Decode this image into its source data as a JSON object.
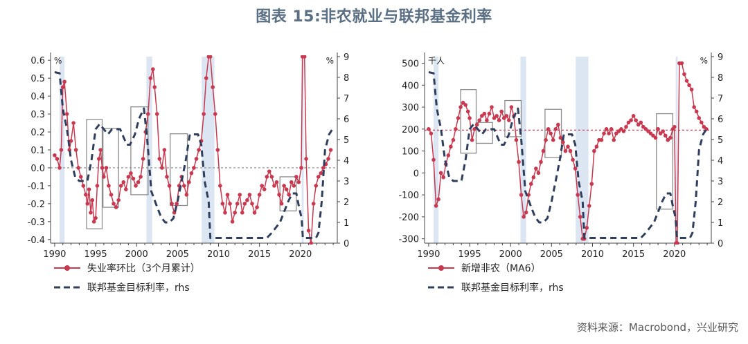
{
  "title": "图表 15:非农就业与联邦基金利率",
  "source": "资料来源：Macrobond，兴业研究",
  "colors": {
    "primary": "#c8384f",
    "secondary": "#2e3e5c",
    "recession": "#dce6f3",
    "box": "#8c8c8c",
    "title": "#5a6f84"
  },
  "chart_data": [
    {
      "type": "line",
      "left_unit": "%",
      "right_unit": "%",
      "ylim": [
        -0.42,
        0.62
      ],
      "y2lim": [
        0,
        9
      ],
      "xlim": [
        1989.5,
        2024.5
      ],
      "yticks": [
        "0.6",
        "0.5",
        "0.4",
        "0.3",
        "0.2",
        "0.1",
        "0.0",
        "-0.1",
        "-0.2",
        "-0.3",
        "-0.4"
      ],
      "y2ticks": [
        "9",
        "8",
        "7",
        "6",
        "5",
        "4",
        "3",
        "2",
        "1",
        "0"
      ],
      "xticks": [
        "1990",
        "1995",
        "2000",
        "2005",
        "2010",
        "2015",
        "2020"
      ],
      "reference_line": 0,
      "recessions": [
        [
          1990.6,
          1991.2
        ],
        [
          2001.2,
          2001.9
        ],
        [
          2007.95,
          2009.5
        ],
        [
          2020.15,
          2020.4
        ]
      ],
      "boxes": [
        [
          1993.9,
          1995.8,
          -0.34,
          0.27
        ],
        [
          1995.9,
          1997.8,
          -0.22,
          0.22
        ],
        [
          1999.3,
          2001.4,
          -0.15,
          0.34
        ],
        [
          2004.1,
          2006.2,
          -0.21,
          0.19
        ],
        [
          2017.5,
          2019.5,
          -0.24,
          -0.05
        ]
      ],
      "series": [
        {
          "name": "失业率环比（3个月累计）",
          "axis": "left",
          "style": "line-marker",
          "x": [
            1990.0,
            1990.3,
            1990.6,
            1990.8,
            1991.0,
            1991.2,
            1991.5,
            1991.8,
            1992.0,
            1992.3,
            1992.6,
            1992.9,
            1993.2,
            1993.5,
            1993.8,
            1994.0,
            1994.2,
            1994.4,
            1994.6,
            1994.8,
            1995.0,
            1995.2,
            1995.4,
            1995.6,
            1995.8,
            1996.0,
            1996.3,
            1996.6,
            1996.9,
            1997.2,
            1997.5,
            1997.8,
            1998.1,
            1998.4,
            1998.7,
            1999.0,
            1999.3,
            1999.6,
            1999.9,
            2000.2,
            2000.5,
            2000.8,
            2001.1,
            2001.4,
            2001.7,
            2002.0,
            2002.2,
            2002.5,
            2002.8,
            2003.1,
            2003.4,
            2003.7,
            2004.0,
            2004.3,
            2004.6,
            2004.9,
            2005.2,
            2005.5,
            2005.8,
            2006.1,
            2006.4,
            2006.7,
            2007.0,
            2007.3,
            2007.6,
            2007.9,
            2008.2,
            2008.5,
            2008.8,
            2009.0,
            2009.3,
            2009.6,
            2009.9,
            2010.2,
            2010.5,
            2010.8,
            2011.1,
            2011.4,
            2011.7,
            2012.0,
            2012.3,
            2012.6,
            2012.9,
            2013.2,
            2013.5,
            2013.8,
            2014.1,
            2014.4,
            2014.7,
            2015.0,
            2015.3,
            2015.6,
            2015.9,
            2016.2,
            2016.5,
            2016.8,
            2017.1,
            2017.4,
            2017.7,
            2018.0,
            2018.3,
            2018.6,
            2018.9,
            2019.2,
            2019.5,
            2019.8,
            2020.1,
            2020.25,
            2020.5,
            2020.7,
            2021.0,
            2021.3,
            2021.6,
            2021.9,
            2022.2,
            2022.5,
            2022.8,
            2023.1,
            2023.4,
            2023.7
          ],
          "y": [
            0.07,
            0.05,
            0.0,
            0.1,
            0.45,
            0.48,
            0.3,
            0.1,
            0.15,
            0.25,
            0.1,
            0.0,
            -0.05,
            -0.1,
            -0.15,
            -0.2,
            -0.12,
            -0.25,
            -0.18,
            -0.3,
            -0.28,
            -0.1,
            0.05,
            0.1,
            0.0,
            -0.05,
            0.0,
            -0.1,
            -0.15,
            -0.2,
            -0.22,
            -0.18,
            -0.1,
            -0.08,
            -0.12,
            -0.05,
            -0.03,
            -0.06,
            -0.1,
            -0.08,
            -0.05,
            0.05,
            0.2,
            0.3,
            0.5,
            0.55,
            0.45,
            0.3,
            0.05,
            0.0,
            0.1,
            -0.05,
            -0.1,
            -0.2,
            -0.25,
            -0.2,
            -0.1,
            -0.05,
            -0.1,
            -0.15,
            -0.08,
            -0.03,
            0.0,
            0.05,
            0.1,
            0.15,
            0.3,
            0.5,
            0.62,
            0.62,
            0.45,
            0.3,
            0.1,
            -0.1,
            -0.2,
            -0.25,
            -0.15,
            -0.2,
            -0.3,
            -0.25,
            -0.2,
            -0.15,
            -0.25,
            -0.2,
            -0.18,
            -0.15,
            -0.2,
            -0.25,
            -0.22,
            -0.15,
            -0.1,
            -0.12,
            -0.05,
            -0.02,
            -0.05,
            -0.1,
            -0.08,
            -0.15,
            -0.2,
            -0.1,
            -0.12,
            -0.15,
            -0.08,
            -0.1,
            -0.05,
            -0.08,
            0.0,
            0.62,
            0.62,
            0.05,
            -0.35,
            -0.42,
            -0.2,
            -0.1,
            -0.05,
            -0.03,
            0.0,
            0.02,
            0.05,
            0.1
          ]
        },
        {
          "name": "联邦基金目标利率，rhs",
          "axis": "right",
          "style": "dashed",
          "x": [
            1990.0,
            1990.6,
            1991.0,
            1991.5,
            1992.0,
            1992.5,
            1993.0,
            1993.5,
            1994.0,
            1994.5,
            1995.0,
            1995.5,
            1996.0,
            1996.5,
            1997.0,
            1998.0,
            1998.8,
            1999.2,
            1999.8,
            2000.3,
            2000.9,
            2001.3,
            2001.8,
            2002.5,
            2003.0,
            2003.5,
            2004.0,
            2004.5,
            2005.0,
            2005.5,
            2006.0,
            2006.5,
            2007.5,
            2007.9,
            2008.3,
            2008.8,
            2009.0,
            2012.0,
            2015.0,
            2015.9,
            2016.5,
            2017.0,
            2017.5,
            2018.0,
            2018.5,
            2019.0,
            2019.5,
            2019.8,
            2020.15,
            2020.3,
            2021.0,
            2021.9,
            2022.2,
            2022.6,
            2023.0,
            2023.5,
            2023.9
          ],
          "y": [
            8.25,
            8.2,
            6.5,
            5.5,
            4.0,
            3.2,
            3.0,
            3.0,
            3.0,
            4.0,
            5.5,
            5.75,
            5.5,
            5.25,
            5.5,
            5.5,
            4.75,
            4.75,
            5.25,
            6.0,
            6.5,
            5.0,
            2.5,
            1.75,
            1.25,
            1.0,
            1.0,
            1.2,
            2.0,
            3.0,
            4.0,
            5.25,
            5.25,
            4.75,
            3.0,
            2.0,
            0.25,
            0.25,
            0.25,
            0.25,
            0.5,
            0.75,
            1.0,
            1.5,
            2.0,
            2.4,
            2.4,
            1.8,
            1.2,
            0.25,
            0.25,
            0.25,
            0.5,
            2.0,
            4.5,
            5.25,
            5.5
          ]
        }
      ]
    },
    {
      "type": "line",
      "left_unit": "千人",
      "right_unit": "%",
      "ylim": [
        -320,
        530
      ],
      "y2lim": [
        0,
        9
      ],
      "xlim": [
        1989.5,
        2024.5
      ],
      "yticks": [
        "500",
        "400",
        "300",
        "200",
        "100",
        "0",
        "-100",
        "-200",
        "-300"
      ],
      "y2ticks": [
        "9",
        "8",
        "7",
        "6",
        "5",
        "4",
        "3",
        "2",
        "1",
        "0"
      ],
      "xticks": [
        "1990",
        "1995",
        "2000",
        "2005",
        "2010",
        "2015",
        "2020"
      ],
      "reference_line": 195,
      "recessions": [
        [
          1990.6,
          1991.2
        ],
        [
          2001.2,
          2001.9
        ],
        [
          2007.95,
          2009.5
        ],
        [
          2020.15,
          2020.4
        ]
      ],
      "boxes": [
        [
          1993.9,
          1995.8,
          90,
          380
        ],
        [
          1995.8,
          1997.8,
          135,
          230
        ],
        [
          1999.3,
          2001.3,
          165,
          330
        ],
        [
          2004.2,
          2006.2,
          70,
          290
        ],
        [
          2017.8,
          2019.8,
          -165,
          270
        ]
      ],
      "series": [
        {
          "name": "新增非农（MA6）",
          "axis": "left",
          "style": "line-marker",
          "x": [
            1990.0,
            1990.3,
            1990.6,
            1990.9,
            1991.2,
            1991.5,
            1991.8,
            1992.1,
            1992.4,
            1992.7,
            1993.0,
            1993.3,
            1993.6,
            1993.9,
            1994.2,
            1994.5,
            1994.8,
            1995.0,
            1995.3,
            1995.6,
            1995.9,
            1996.2,
            1996.5,
            1996.8,
            1997.1,
            1997.4,
            1997.7,
            1998.0,
            1998.3,
            1998.6,
            1998.9,
            1999.2,
            1999.5,
            1999.8,
            2000.1,
            2000.4,
            2000.7,
            2001.0,
            2001.3,
            2001.6,
            2001.9,
            2002.2,
            2002.5,
            2002.8,
            2003.1,
            2003.4,
            2003.7,
            2004.0,
            2004.3,
            2004.6,
            2004.9,
            2005.2,
            2005.5,
            2005.8,
            2006.1,
            2006.4,
            2006.7,
            2007.0,
            2007.3,
            2007.6,
            2007.9,
            2008.2,
            2008.5,
            2008.8,
            2009.0,
            2009.3,
            2009.6,
            2009.9,
            2010.2,
            2010.5,
            2010.8,
            2011.1,
            2011.4,
            2011.7,
            2012.0,
            2012.3,
            2012.6,
            2012.9,
            2013.2,
            2013.5,
            2013.8,
            2014.1,
            2014.4,
            2014.7,
            2015.0,
            2015.3,
            2015.6,
            2015.9,
            2016.2,
            2016.5,
            2016.8,
            2017.1,
            2017.4,
            2017.7,
            2018.0,
            2018.3,
            2018.6,
            2018.9,
            2019.2,
            2019.5,
            2019.8,
            2020.0,
            2020.2,
            2020.35,
            2020.6,
            2020.9,
            2021.2,
            2021.5,
            2021.8,
            2022.1,
            2022.4,
            2022.7,
            2023.0,
            2023.3,
            2023.6,
            2023.9
          ],
          "y": [
            200,
            180,
            60,
            -150,
            -120,
            0,
            -20,
            40,
            80,
            120,
            150,
            200,
            250,
            300,
            320,
            310,
            280,
            250,
            150,
            200,
            220,
            240,
            260,
            270,
            240,
            270,
            300,
            250,
            260,
            240,
            280,
            250,
            260,
            240,
            300,
            260,
            150,
            50,
            -100,
            -200,
            -180,
            -100,
            -50,
            -20,
            20,
            0,
            50,
            100,
            150,
            200,
            180,
            150,
            200,
            220,
            160,
            140,
            100,
            120,
            100,
            60,
            20,
            -100,
            -200,
            -300,
            -300,
            -250,
            -150,
            -50,
            100,
            120,
            150,
            150,
            180,
            200,
            180,
            200,
            150,
            180,
            190,
            200,
            190,
            210,
            230,
            240,
            260,
            240,
            220,
            230,
            210,
            200,
            190,
            180,
            170,
            160,
            200,
            180,
            190,
            170,
            150,
            160,
            200,
            210,
            -320,
            -320,
            500,
            500,
            450,
            420,
            400,
            380,
            300,
            280,
            250,
            230,
            210,
            200
          ]
        },
        {
          "name": "联邦基金目标利率，rhs",
          "axis": "right",
          "style": "dashed",
          "x": [
            1990.0,
            1990.6,
            1991.0,
            1991.5,
            1992.0,
            1992.5,
            1993.0,
            1993.5,
            1994.0,
            1994.5,
            1995.0,
            1995.5,
            1996.0,
            1996.5,
            1997.0,
            1998.0,
            1998.8,
            1999.2,
            1999.8,
            2000.3,
            2000.9,
            2001.3,
            2001.8,
            2002.5,
            2003.0,
            2003.5,
            2004.0,
            2004.5,
            2005.0,
            2005.5,
            2006.0,
            2006.5,
            2007.5,
            2007.9,
            2008.3,
            2008.8,
            2009.0,
            2012.0,
            2015.0,
            2015.9,
            2016.5,
            2017.0,
            2017.5,
            2018.0,
            2018.5,
            2019.0,
            2019.5,
            2019.8,
            2020.15,
            2020.3,
            2021.0,
            2021.9,
            2022.2,
            2022.6,
            2023.0,
            2023.5,
            2023.9
          ],
          "y": [
            8.25,
            8.2,
            6.5,
            5.5,
            4.0,
            3.2,
            3.0,
            3.0,
            3.0,
            4.0,
            5.5,
            5.75,
            5.5,
            5.25,
            5.5,
            5.5,
            4.75,
            4.75,
            5.25,
            6.0,
            6.5,
            5.0,
            2.5,
            1.75,
            1.25,
            1.0,
            1.0,
            1.2,
            2.0,
            3.0,
            4.0,
            5.25,
            5.25,
            4.75,
            3.0,
            2.0,
            0.25,
            0.25,
            0.25,
            0.25,
            0.5,
            0.75,
            1.0,
            1.5,
            2.0,
            2.4,
            2.4,
            1.8,
            1.2,
            0.25,
            0.25,
            0.25,
            0.5,
            2.0,
            4.5,
            5.25,
            5.5
          ]
        }
      ]
    }
  ]
}
